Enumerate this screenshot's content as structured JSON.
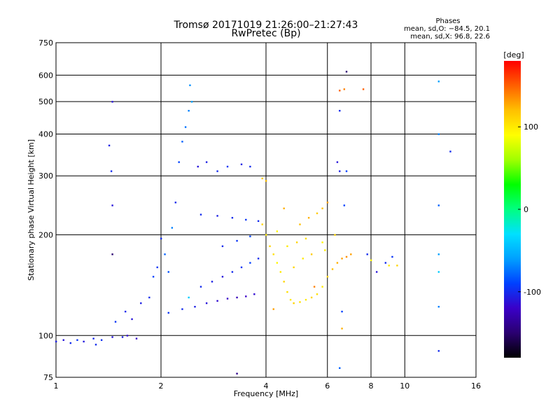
{
  "chart_data": {
    "type": "scatter",
    "title": "Tromsø 20171019 21:26:00–21:27:43",
    "subtitle": "RwPretec (Bp)",
    "xlabel": "Frequency [MHz]",
    "ylabel": "Stationary phase Virtual Height [km]",
    "x_scale": "log",
    "y_scale": "log",
    "xlim": [
      1,
      16
    ],
    "ylim": [
      75,
      750
    ],
    "x_ticks": [
      1,
      2,
      4,
      6,
      8,
      10,
      16
    ],
    "y_ticks": [
      75,
      100,
      200,
      300,
      400,
      500,
      600,
      750
    ],
    "x_gridlines": [
      2,
      4,
      6,
      8,
      10
    ],
    "y_gridlines": [
      100,
      200,
      300,
      400,
      500,
      600
    ],
    "grid": true,
    "phases_box": {
      "header": "Phases",
      "line_o": "mean, sd,O: −84.5, 20.1",
      "line_x": "mean, sd,X:  96.8, 22.6"
    },
    "colorbar": {
      "label": "[deg]",
      "range": [
        -180,
        180
      ],
      "ticks": [
        100,
        0,
        -100
      ],
      "colormap": [
        "#000000",
        "#2a0070",
        "#3a00c8",
        "#0040ff",
        "#00a0ff",
        "#00e0ff",
        "#00ff80",
        "#00ff00",
        "#a0ff00",
        "#ffff00",
        "#ffc000",
        "#ff6000",
        "#ff0000"
      ]
    },
    "series": [
      {
        "points": [
          [
            1.0,
            96,
            -105
          ],
          [
            1.05,
            97,
            -110
          ],
          [
            1.1,
            95,
            -100
          ],
          [
            1.15,
            97,
            -95
          ],
          [
            1.2,
            96,
            -108
          ],
          [
            1.28,
            98,
            -102
          ],
          [
            1.35,
            97,
            -98
          ],
          [
            1.3,
            94,
            -100
          ],
          [
            1.45,
            99,
            -110
          ],
          [
            1.55,
            99,
            -105
          ],
          [
            1.6,
            100,
            -115
          ],
          [
            1.7,
            98,
            -120
          ],
          [
            1.48,
            110,
            -95
          ],
          [
            1.58,
            118,
            -100
          ],
          [
            1.65,
            112,
            -110
          ],
          [
            1.75,
            125,
            -105
          ],
          [
            1.85,
            130,
            -100
          ],
          [
            1.9,
            150,
            -90
          ],
          [
            1.95,
            160,
            -95
          ],
          [
            2.0,
            195,
            -100
          ],
          [
            2.05,
            175,
            -80
          ],
          [
            2.1,
            155,
            -85
          ],
          [
            2.15,
            210,
            -70
          ],
          [
            2.2,
            250,
            -100
          ],
          [
            2.25,
            330,
            -90
          ],
          [
            2.3,
            380,
            -80
          ],
          [
            2.35,
            420,
            -75
          ],
          [
            2.4,
            470,
            -70
          ],
          [
            2.45,
            500,
            -60
          ],
          [
            2.42,
            560,
            -65
          ],
          [
            2.55,
            320,
            -110
          ],
          [
            2.7,
            330,
            -105
          ],
          [
            2.9,
            310,
            -100
          ],
          [
            3.1,
            320,
            -95
          ],
          [
            3.4,
            325,
            -105
          ],
          [
            3.6,
            320,
            -100
          ],
          [
            2.1,
            117,
            -95
          ],
          [
            2.3,
            120,
            -100
          ],
          [
            2.5,
            122,
            -105
          ],
          [
            2.7,
            125,
            -110
          ],
          [
            2.9,
            127,
            -115
          ],
          [
            3.1,
            129,
            -120
          ],
          [
            3.3,
            130,
            -125
          ],
          [
            3.5,
            131,
            -120
          ],
          [
            3.7,
            133,
            -115
          ],
          [
            2.6,
            140,
            -100
          ],
          [
            2.8,
            145,
            -105
          ],
          [
            3.0,
            150,
            -110
          ],
          [
            3.2,
            155,
            -100
          ],
          [
            3.4,
            160,
            -95
          ],
          [
            3.6,
            165,
            -90
          ],
          [
            3.8,
            170,
            -100
          ],
          [
            2.6,
            230,
            -100
          ],
          [
            2.9,
            228,
            -105
          ],
          [
            3.2,
            225,
            -100
          ],
          [
            3.5,
            222,
            -95
          ],
          [
            3.8,
            220,
            -100
          ],
          [
            3.0,
            185,
            -100
          ],
          [
            3.3,
            192,
            -95
          ],
          [
            3.6,
            198,
            -90
          ],
          [
            1.45,
            500,
            -110
          ],
          [
            1.42,
            370,
            -105
          ],
          [
            1.44,
            310,
            -100
          ],
          [
            1.45,
            245,
            -110
          ],
          [
            1.45,
            175,
            -150
          ]
        ],
        "phase": "O"
      },
      {
        "points": [
          [
            4.0,
            200,
            100
          ],
          [
            4.1,
            185,
            110
          ],
          [
            4.2,
            175,
            105
          ],
          [
            4.3,
            165,
            95
          ],
          [
            4.4,
            155,
            100
          ],
          [
            4.5,
            145,
            110
          ],
          [
            4.6,
            135,
            105
          ],
          [
            4.7,
            128,
            100
          ],
          [
            4.8,
            125,
            110
          ],
          [
            5.0,
            126,
            105
          ],
          [
            5.2,
            128,
            100
          ],
          [
            5.4,
            130,
            110
          ],
          [
            5.6,
            133,
            105
          ],
          [
            5.8,
            140,
            100
          ],
          [
            6.0,
            150,
            110
          ],
          [
            6.2,
            158,
            120
          ],
          [
            6.4,
            165,
            125
          ],
          [
            6.6,
            170,
            130
          ],
          [
            6.8,
            172,
            135
          ],
          [
            7.0,
            175,
            130
          ],
          [
            5.0,
            215,
            120
          ],
          [
            5.3,
            225,
            125
          ],
          [
            5.6,
            232,
            115
          ],
          [
            5.8,
            240,
            120
          ],
          [
            6.0,
            250,
            130
          ],
          [
            5.8,
            190,
            95
          ],
          [
            5.9,
            180,
            100
          ],
          [
            4.6,
            185,
            100
          ],
          [
            4.9,
            190,
            110
          ],
          [
            5.2,
            195,
            105
          ],
          [
            3.9,
            295,
            115
          ],
          [
            4.0,
            290,
            120
          ],
          [
            3.9,
            215,
            110
          ],
          [
            4.5,
            240,
            125
          ],
          [
            6.5,
            540,
            150
          ],
          [
            6.7,
            545,
            140
          ],
          [
            7.6,
            545,
            150
          ],
          [
            8.0,
            168,
            95
          ],
          [
            9.0,
            162,
            100
          ],
          [
            9.5,
            162,
            110
          ],
          [
            4.8,
            160,
            110
          ],
          [
            5.1,
            170,
            100
          ],
          [
            5.4,
            175,
            115
          ],
          [
            4.3,
            205,
            95
          ],
          [
            6.3,
            200,
            110
          ]
        ],
        "phase": "X"
      },
      {
        "points": [
          [
            12.5,
            575,
            -60
          ],
          [
            12.5,
            400,
            -70
          ],
          [
            13.5,
            355,
            -100
          ],
          [
            12.5,
            245,
            -80
          ],
          [
            12.5,
            175,
            -60
          ],
          [
            12.5,
            122,
            -70
          ],
          [
            12.5,
            90,
            -100
          ],
          [
            12.5,
            155,
            -40
          ],
          [
            6.8,
            615,
            -150
          ],
          [
            6.5,
            470,
            -100
          ],
          [
            6.4,
            330,
            -110
          ],
          [
            6.8,
            310,
            -90
          ],
          [
            6.5,
            310,
            -105
          ],
          [
            6.7,
            245,
            -90
          ],
          [
            6.5,
            80,
            -80
          ],
          [
            6.6,
            118,
            -90
          ],
          [
            7.8,
            175,
            -100
          ],
          [
            8.3,
            155,
            -110
          ],
          [
            8.8,
            165,
            -100
          ],
          [
            9.2,
            172,
            -95
          ],
          [
            3.3,
            77,
            -140
          ],
          [
            2.4,
            130,
            -40
          ],
          [
            4.2,
            120,
            130
          ],
          [
            5.5,
            140,
            140
          ],
          [
            6.6,
            105,
            125
          ]
        ],
        "phase": "other"
      }
    ]
  }
}
